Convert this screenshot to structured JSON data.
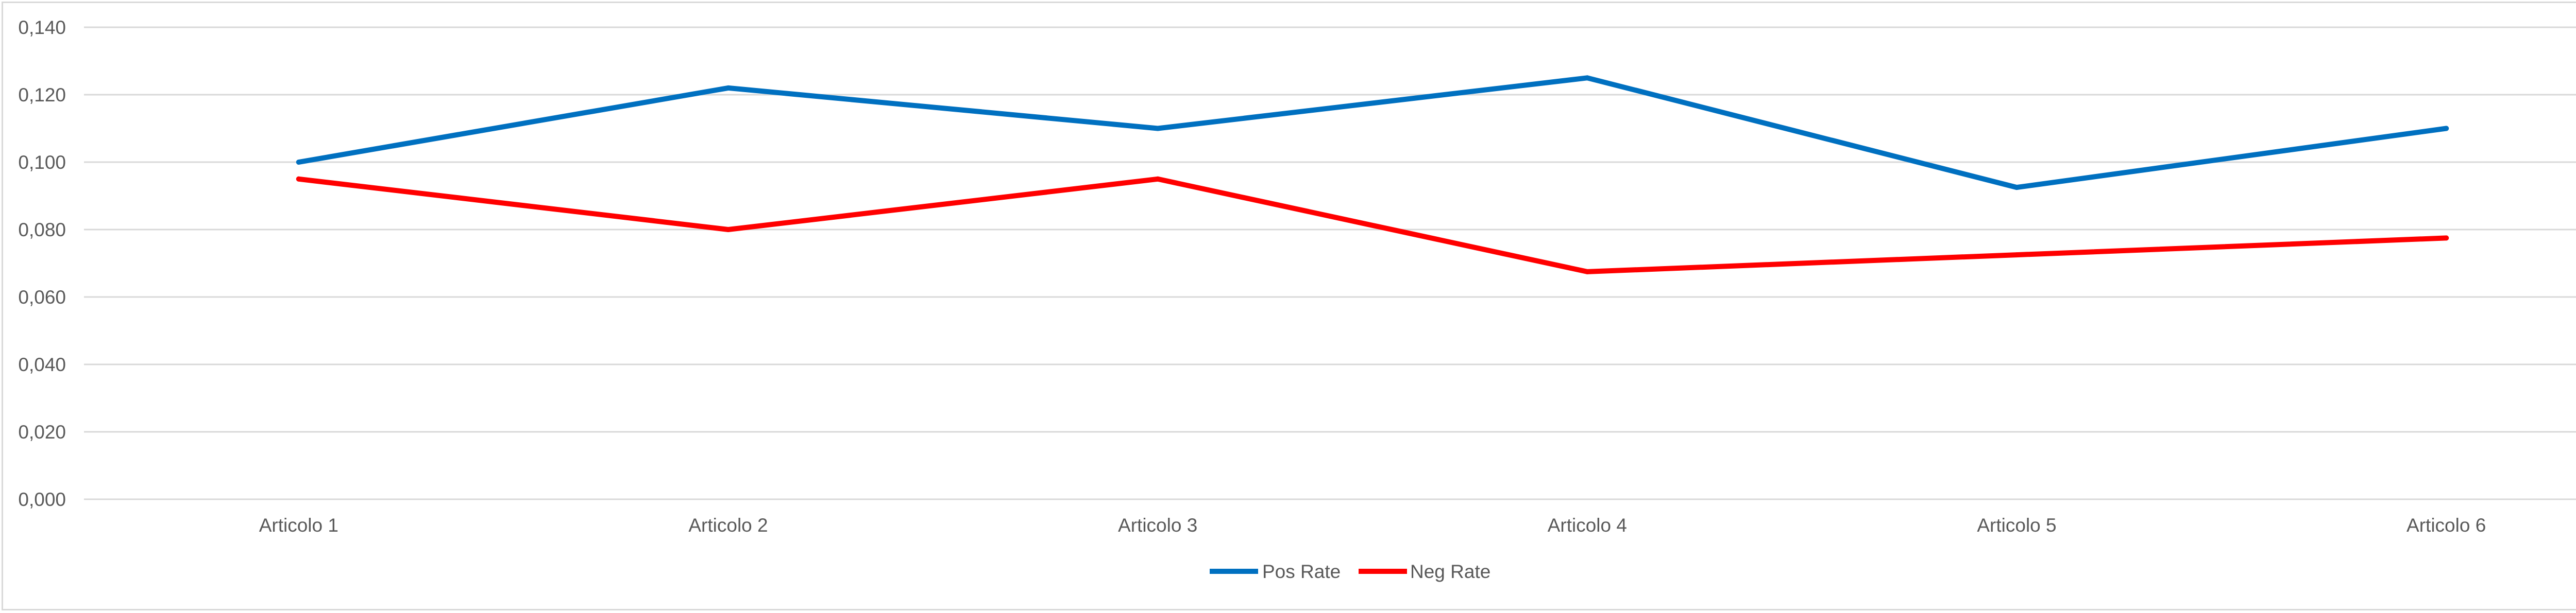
{
  "chart_data": {
    "type": "line",
    "categories": [
      "Articolo 1",
      "Articolo 2",
      "Articolo 3",
      "Articolo 4",
      "Articolo 5",
      "Articolo 6"
    ],
    "series": [
      {
        "name": "Pos Rate",
        "color": "#0070c0",
        "values": [
          0.1,
          0.122,
          0.11,
          0.125,
          0.0925,
          0.11
        ]
      },
      {
        "name": "Neg Rate",
        "color": "#ff0000",
        "values": [
          0.095,
          0.08,
          0.095,
          0.0675,
          0.0725,
          0.0775
        ]
      }
    ],
    "ylim": [
      0,
      0.14
    ],
    "yticks": [
      "0,000",
      "0,020",
      "0,040",
      "0,060",
      "0,080",
      "0,100",
      "0,120",
      "0,140"
    ],
    "grid": true,
    "gridColor": "#d9d9d9",
    "legend": "bottom-center"
  }
}
